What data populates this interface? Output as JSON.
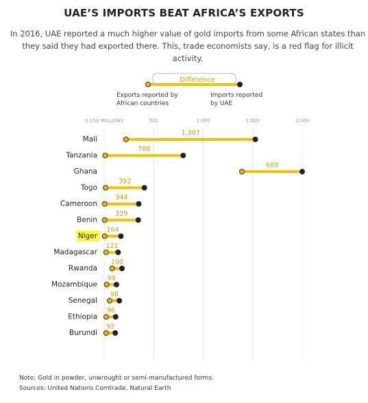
{
  "chart_data": {
    "type": "dumbbell",
    "title": "UAE’S IMPORTS BEAT AFRICA’S EXPORTS",
    "subtitle": "In 2016, UAE reported a much higher value of gold imports from some African states than they said they had exported there. This, trade economists say, is a red flag for illicit activity.",
    "categories": [
      "Mali",
      "Tanzania",
      "Ghana",
      "Togo",
      "Cameroon",
      "Benin",
      "Niger",
      "Madagascar",
      "Rwanda",
      "Mozambique",
      "Senegal",
      "Ethiopia",
      "Burundi"
    ],
    "series": [
      {
        "name": "Exports reported by African countries",
        "color": "#f2b705",
        "values": [
          220,
          10,
          1391,
          14,
          5,
          5,
          5,
          20,
          80,
          25,
          55,
          20,
          20
        ]
      },
      {
        "name": "Imports reported by UAE",
        "color": "#222222",
        "values": [
          1527,
          798,
          2000,
          406,
          349,
          344,
          169,
          141,
          180,
          124,
          153,
          116,
          112
        ]
      }
    ],
    "differences": {
      "name": "Difference",
      "color": "#f2c200",
      "values": [
        1307,
        788,
        609,
        392,
        344,
        339,
        164,
        121,
        100,
        99,
        98,
        96,
        92
      ],
      "value_labels": [
        "1,307",
        "788",
        "609",
        "392",
        "344",
        "339",
        "164",
        "121",
        "100",
        "99",
        "98",
        "96",
        "92"
      ]
    },
    "highlight_index": 6,
    "xlim": [
      0,
      2000
    ],
    "xticks": [
      {
        "value": 0,
        "label": "0 US$ MILLIONS"
      },
      500,
      {
        "value": 1000,
        "label": "1,000"
      },
      {
        "value": 1500,
        "label": "1,500"
      },
      {
        "value": 2000,
        "label": "2,000"
      }
    ],
    "grid": true,
    "note": "Note: Gold in powder, unwrought or semi-manufactured forms.",
    "source": "Sources: United Nations Comtrade, Natural Earth"
  }
}
